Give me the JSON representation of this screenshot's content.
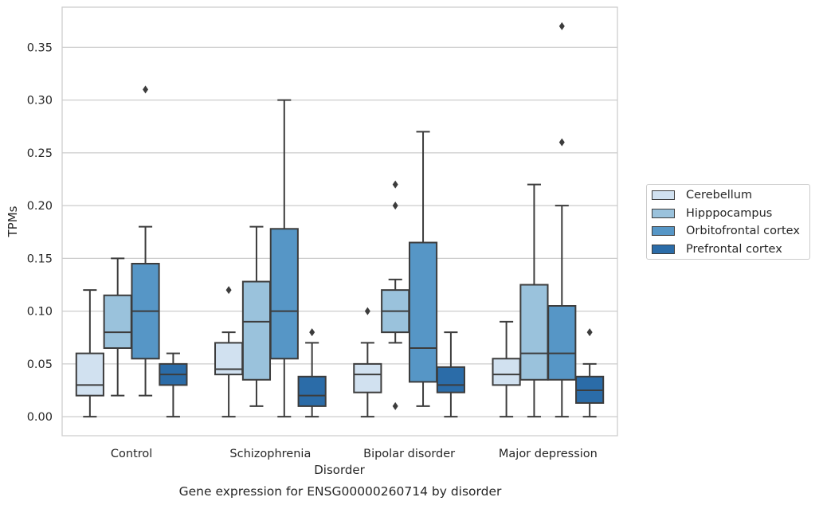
{
  "chart_data": {
    "type": "box",
    "title": "Gene expression for ENSG00000260714 by disorder",
    "xlabel": "Disorder",
    "ylabel": "TPMs",
    "ylim": [
      -0.018,
      0.388
    ],
    "yticks": [
      "0.00",
      "0.05",
      "0.10",
      "0.15",
      "0.20",
      "0.25",
      "0.30",
      "0.35"
    ],
    "grid": "horizontal",
    "legend_position": "right",
    "categories": [
      "Control",
      "Schizophrenia",
      "Bipolar disorder",
      "Major depression"
    ],
    "series": [
      {
        "name": "Cerebellum",
        "color": "#d1e1f0",
        "boxes": [
          {
            "min": 0.0,
            "q1": 0.02,
            "median": 0.03,
            "q3": 0.06,
            "max": 0.12,
            "outliers": []
          },
          {
            "min": 0.0,
            "q1": 0.04,
            "median": 0.045,
            "q3": 0.07,
            "max": 0.08,
            "outliers": [
              0.12
            ]
          },
          {
            "min": 0.0,
            "q1": 0.023,
            "median": 0.04,
            "q3": 0.05,
            "max": 0.07,
            "outliers": [
              0.1
            ]
          },
          {
            "min": 0.0,
            "q1": 0.03,
            "median": 0.04,
            "q3": 0.055,
            "max": 0.09,
            "outliers": []
          }
        ]
      },
      {
        "name": "Hipppocampus",
        "color": "#9ac2dc",
        "boxes": [
          {
            "min": 0.02,
            "q1": 0.065,
            "median": 0.08,
            "q3": 0.115,
            "max": 0.15,
            "outliers": []
          },
          {
            "min": 0.01,
            "q1": 0.035,
            "median": 0.09,
            "q3": 0.128,
            "max": 0.18,
            "outliers": []
          },
          {
            "min": 0.07,
            "q1": 0.08,
            "median": 0.1,
            "q3": 0.12,
            "max": 0.13,
            "outliers": [
              0.22,
              0.2,
              0.01
            ]
          },
          {
            "min": 0.0,
            "q1": 0.035,
            "median": 0.06,
            "q3": 0.125,
            "max": 0.22,
            "outliers": []
          }
        ]
      },
      {
        "name": "Orbitofrontal cortex",
        "color": "#5696c6",
        "boxes": [
          {
            "min": 0.02,
            "q1": 0.055,
            "median": 0.1,
            "q3": 0.145,
            "max": 0.18,
            "outliers": [
              0.31
            ]
          },
          {
            "min": 0.0,
            "q1": 0.055,
            "median": 0.1,
            "q3": 0.178,
            "max": 0.3,
            "outliers": []
          },
          {
            "min": 0.01,
            "q1": 0.033,
            "median": 0.065,
            "q3": 0.165,
            "max": 0.27,
            "outliers": []
          },
          {
            "min": 0.0,
            "q1": 0.035,
            "median": 0.06,
            "q3": 0.105,
            "max": 0.2,
            "outliers": [
              0.37,
              0.26
            ]
          }
        ]
      },
      {
        "name": "Prefrontal cortex",
        "color": "#2b6ca8",
        "boxes": [
          {
            "min": 0.0,
            "q1": 0.03,
            "median": 0.04,
            "q3": 0.05,
            "max": 0.06,
            "outliers": []
          },
          {
            "min": 0.0,
            "q1": 0.01,
            "median": 0.02,
            "q3": 0.038,
            "max": 0.07,
            "outliers": [
              0.08
            ]
          },
          {
            "min": 0.0,
            "q1": 0.023,
            "median": 0.03,
            "q3": 0.047,
            "max": 0.08,
            "outliers": []
          },
          {
            "min": 0.0,
            "q1": 0.013,
            "median": 0.025,
            "q3": 0.038,
            "max": 0.05,
            "outliers": [
              0.08
            ]
          }
        ]
      }
    ]
  }
}
